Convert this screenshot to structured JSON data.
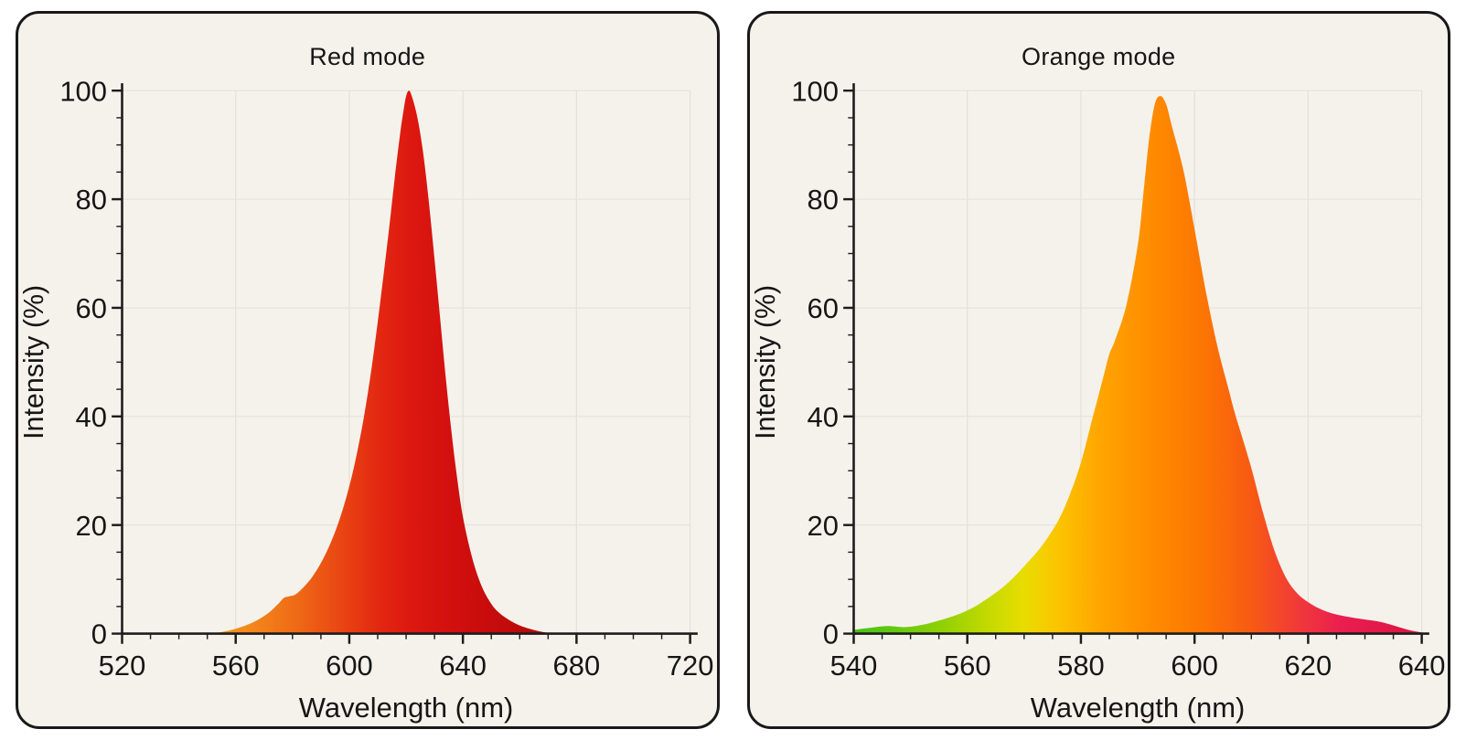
{
  "theme": {
    "page-bg": "#ffffff",
    "panel-bg": "#f5f2ec",
    "border-color": "#191919",
    "text-color": "#161616",
    "axis-color": "#1c1c1c",
    "grid-color": "#e4e1d7"
  },
  "chart_data": [
    {
      "type": "area",
      "title": "Red mode",
      "xlabel": "Wavelength (nm)",
      "ylabel": "Intensity (%)",
      "xlim": [
        520,
        720
      ],
      "ylim": [
        0,
        100
      ],
      "x_major_ticks": [
        520,
        560,
        600,
        640,
        680,
        720
      ],
      "x_minor_step": 10,
      "y_major_ticks": [
        0,
        20,
        40,
        60,
        80,
        100
      ],
      "y_minor_step": 5,
      "grid": true,
      "points": [
        [
          552,
          0
        ],
        [
          556,
          0.4
        ],
        [
          560,
          0.9
        ],
        [
          564,
          1.6
        ],
        [
          568,
          2.6
        ],
        [
          572,
          4
        ],
        [
          575,
          5.5
        ],
        [
          577,
          6.6
        ],
        [
          579,
          6.9
        ],
        [
          581,
          7.2
        ],
        [
          584,
          8.6
        ],
        [
          587,
          10.5
        ],
        [
          590,
          13
        ],
        [
          593,
          16.2
        ],
        [
          596,
          20.2
        ],
        [
          599,
          25.2
        ],
        [
          602,
          31.5
        ],
        [
          605,
          39.5
        ],
        [
          608,
          49.5
        ],
        [
          611,
          61.5
        ],
        [
          614,
          74.5
        ],
        [
          616,
          84
        ],
        [
          618,
          92.5
        ],
        [
          619,
          96
        ],
        [
          620,
          99
        ],
        [
          621,
          100
        ],
        [
          622,
          99
        ],
        [
          624,
          95
        ],
        [
          626,
          88.5
        ],
        [
          628,
          79.5
        ],
        [
          630,
          69
        ],
        [
          632,
          58
        ],
        [
          634,
          47
        ],
        [
          636,
          37
        ],
        [
          638,
          28.5
        ],
        [
          640,
          21.5
        ],
        [
          643,
          14.5
        ],
        [
          646,
          9.5
        ],
        [
          649,
          6.3
        ],
        [
          652,
          4.2
        ],
        [
          656,
          2.6
        ],
        [
          660,
          1.5
        ],
        [
          664,
          0.8
        ],
        [
          668,
          0.3
        ],
        [
          672,
          0
        ]
      ],
      "gradient_stops": [
        {
          "offset": 0.0,
          "color": "#f29a1d"
        },
        {
          "offset": 0.12,
          "color": "#f2851b"
        },
        {
          "offset": 0.25,
          "color": "#ef6916"
        },
        {
          "offset": 0.38,
          "color": "#e94413"
        },
        {
          "offset": 0.5,
          "color": "#e22511"
        },
        {
          "offset": 0.58,
          "color": "#dd1810"
        },
        {
          "offset": 0.7,
          "color": "#d2100e"
        },
        {
          "offset": 0.85,
          "color": "#c30b0b"
        },
        {
          "offset": 1.0,
          "color": "#b20909"
        }
      ]
    },
    {
      "type": "area",
      "title": "Orange mode",
      "xlabel": "Wavelength (nm)",
      "ylabel": "Intensity (%)",
      "xlim": [
        540,
        640
      ],
      "ylim": [
        0,
        100
      ],
      "x_major_ticks": [
        540,
        560,
        580,
        600,
        620,
        640
      ],
      "x_minor_step": 5,
      "y_major_ticks": [
        0,
        20,
        40,
        60,
        80,
        100
      ],
      "y_minor_step": 5,
      "grid": true,
      "points": [
        [
          540,
          0.7
        ],
        [
          543,
          1.1
        ],
        [
          546,
          1.4
        ],
        [
          549,
          1.2
        ],
        [
          552,
          1.6
        ],
        [
          555,
          2.4
        ],
        [
          558,
          3.4
        ],
        [
          561,
          4.8
        ],
        [
          564,
          6.8
        ],
        [
          567,
          9.2
        ],
        [
          570,
          12.4
        ],
        [
          573,
          16
        ],
        [
          576,
          20.8
        ],
        [
          578,
          25.5
        ],
        [
          580,
          31.5
        ],
        [
          582,
          39.5
        ],
        [
          584,
          47.5
        ],
        [
          585,
          51.5
        ],
        [
          586,
          54
        ],
        [
          588,
          60.5
        ],
        [
          590,
          71.5
        ],
        [
          591,
          81
        ],
        [
          592,
          91
        ],
        [
          593,
          97.5
        ],
        [
          594,
          99
        ],
        [
          595,
          97.5
        ],
        [
          596,
          93.5
        ],
        [
          598,
          85.5
        ],
        [
          600,
          74.5
        ],
        [
          602,
          63
        ],
        [
          604,
          53
        ],
        [
          606,
          45
        ],
        [
          607,
          41
        ],
        [
          608,
          37.5
        ],
        [
          610,
          30.5
        ],
        [
          612,
          22.5
        ],
        [
          614,
          15.5
        ],
        [
          616,
          10.5
        ],
        [
          618,
          7.5
        ],
        [
          620,
          5.8
        ],
        [
          622,
          4.6
        ],
        [
          624,
          3.8
        ],
        [
          627,
          3.1
        ],
        [
          630,
          2.6
        ],
        [
          633,
          2.1
        ],
        [
          636,
          1.2
        ],
        [
          638,
          0.6
        ],
        [
          640,
          0.2
        ]
      ],
      "gradient_stops": [
        {
          "offset": 0.0,
          "color": "#46c11a"
        },
        {
          "offset": 0.08,
          "color": "#66c90e"
        },
        {
          "offset": 0.16,
          "color": "#93d104"
        },
        {
          "offset": 0.24,
          "color": "#c6da00"
        },
        {
          "offset": 0.3,
          "color": "#e8dd00"
        },
        {
          "offset": 0.36,
          "color": "#fcc400"
        },
        {
          "offset": 0.44,
          "color": "#ffa300"
        },
        {
          "offset": 0.53,
          "color": "#ff8a00"
        },
        {
          "offset": 0.62,
          "color": "#fc7403"
        },
        {
          "offset": 0.7,
          "color": "#f75a14"
        },
        {
          "offset": 0.78,
          "color": "#f13a38"
        },
        {
          "offset": 0.86,
          "color": "#ea1e50"
        },
        {
          "offset": 1.0,
          "color": "#db1440"
        }
      ]
    }
  ]
}
